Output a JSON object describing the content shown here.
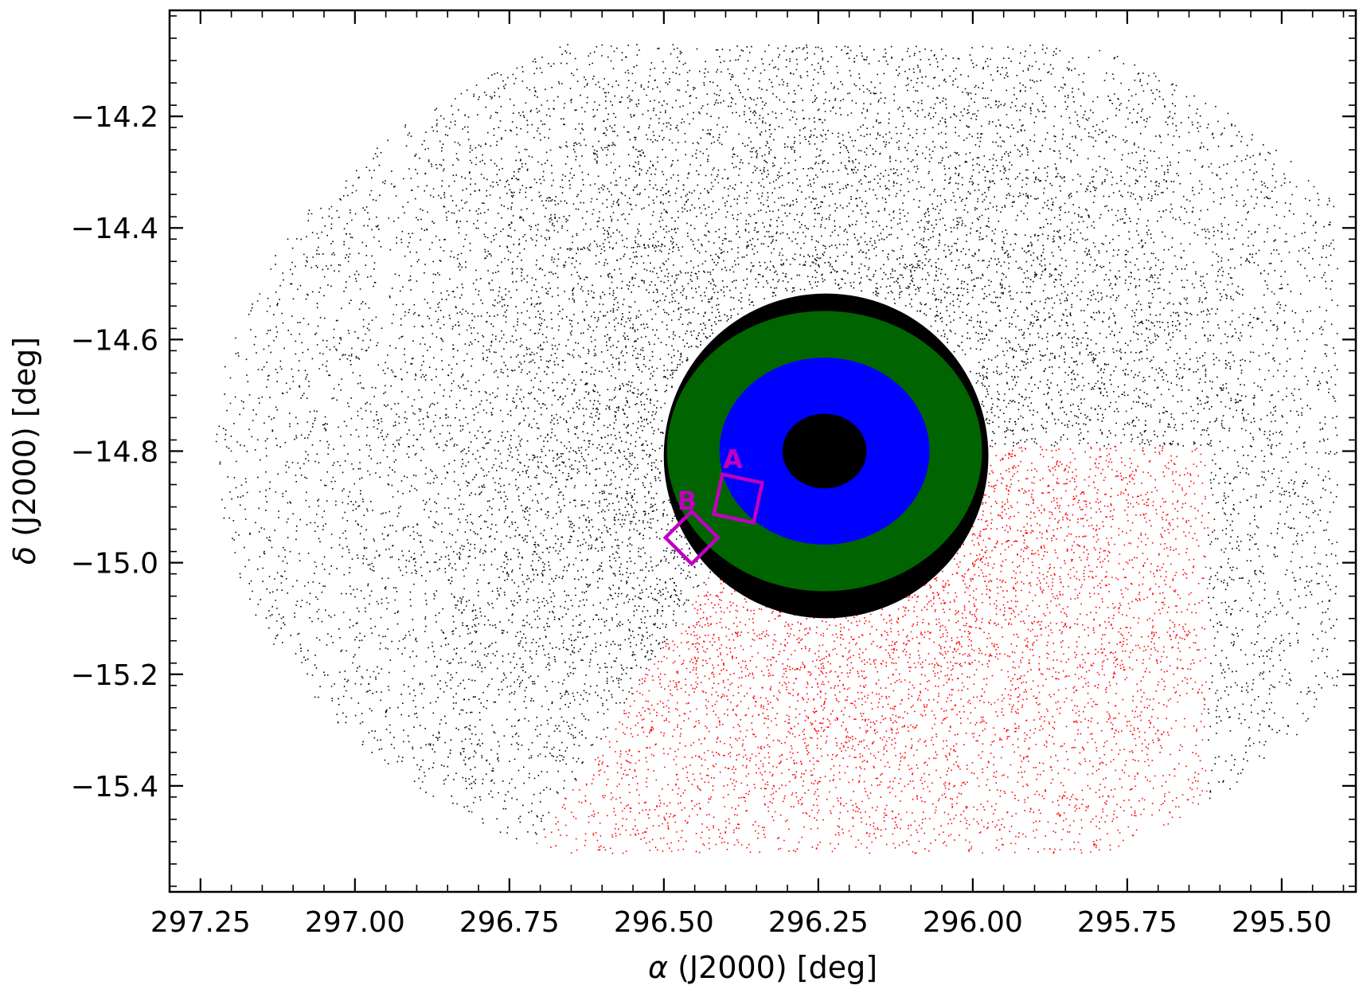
{
  "chart_data": {
    "type": "scatter",
    "title": "",
    "xlabel_symbol": "α",
    "xlabel_rest": " (J2000) [deg]",
    "ylabel_symbol": "δ",
    "ylabel_rest": " (J2000) [deg]",
    "xlim": [
      297.3,
      295.38
    ],
    "ylim": [
      -15.59,
      -14.01
    ],
    "x_axis_inverted": true,
    "x_ticks": [
      297.25,
      297.0,
      296.75,
      296.5,
      296.25,
      296.0,
      295.75,
      295.5
    ],
    "x_tick_labels": [
      "297.25",
      "297.00",
      "296.75",
      "296.50",
      "296.25",
      "296.00",
      "295.75",
      "295.50"
    ],
    "y_ticks": [
      -14.2,
      -14.4,
      -14.6,
      -14.8,
      -15.0,
      -15.2,
      -15.4
    ],
    "y_tick_labels": [
      "−14.2",
      "−14.4",
      "−14.6",
      "−14.8",
      "−15.0",
      "−15.2",
      "−15.4"
    ],
    "grid": false,
    "center": {
      "ra": 296.24,
      "dec": -14.8
    },
    "regions": [
      {
        "name": "outer field",
        "color": "#000000",
        "ra_range": [
          297.25,
          295.41
        ],
        "dec_range": [
          -15.52,
          -14.07
        ]
      },
      {
        "name": "background region",
        "color": "#ff0000",
        "dec_max": -14.79,
        "dec_min": -15.52,
        "ra_min": 295.62,
        "ra_max": 296.72
      },
      {
        "name": "outer annulus",
        "color": "#006400",
        "radius_deg": 0.255
      },
      {
        "name": "inner annulus",
        "color": "#0000ff",
        "radius_deg": 0.17
      },
      {
        "name": "core",
        "color": "#000000",
        "radius_deg": 0.068
      }
    ],
    "boxes": [
      {
        "label": "A",
        "ra": 296.38,
        "dec": -14.885,
        "half_size_deg": 0.033,
        "rotation_deg": 12,
        "color": "#c000c0"
      },
      {
        "label": "B",
        "ra": 296.455,
        "dec": -14.955,
        "half_size_deg": 0.03,
        "rotation_deg": 45,
        "color": "#c000c0"
      }
    ]
  }
}
